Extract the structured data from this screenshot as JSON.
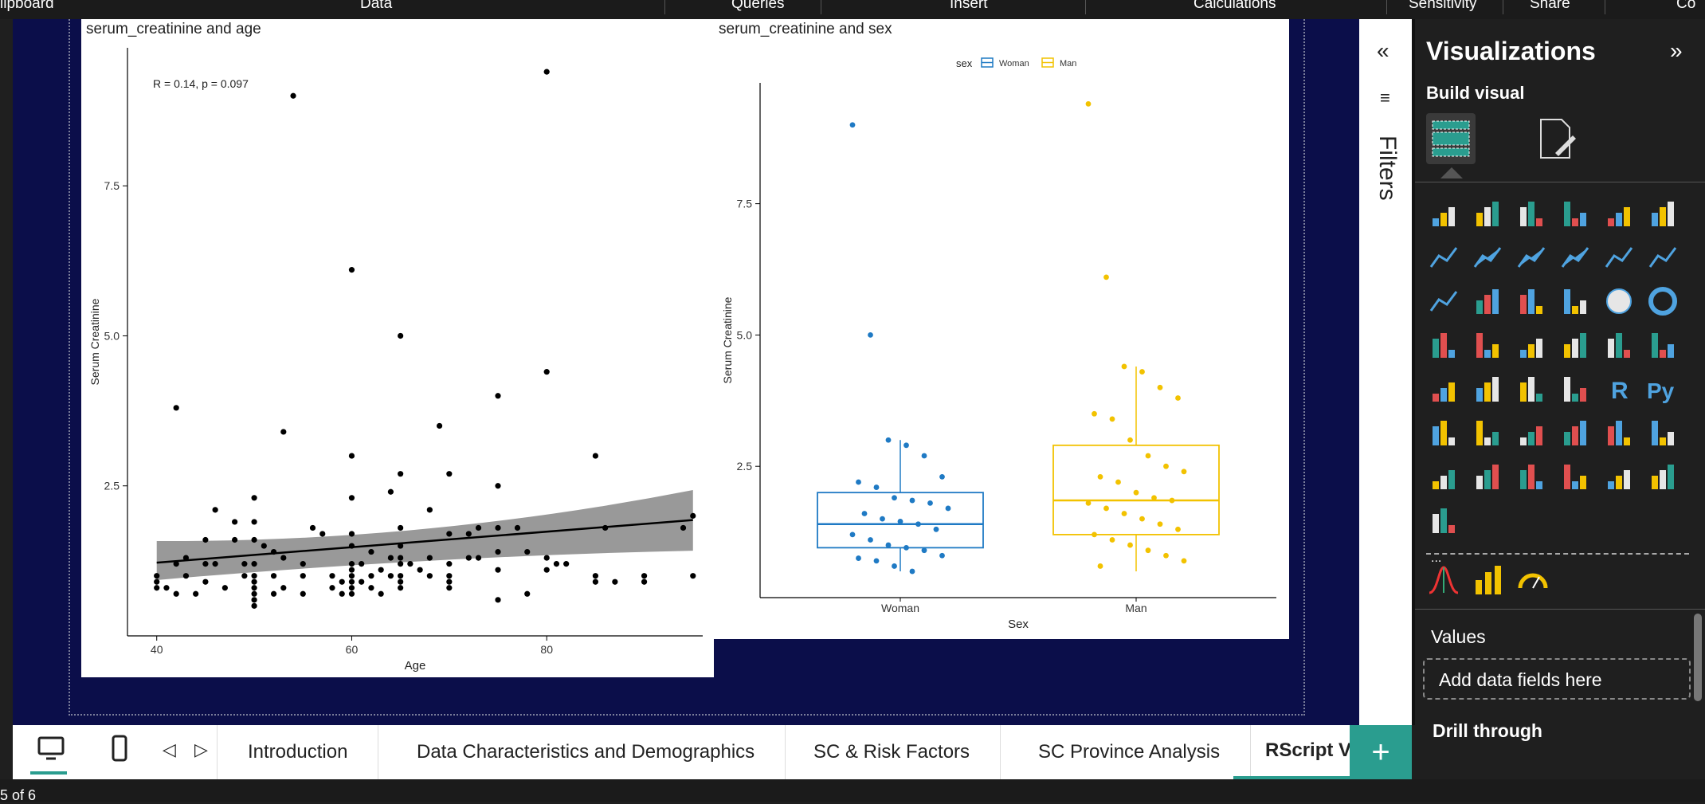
{
  "ribbon": {
    "items": [
      "lipboard",
      "Data",
      "Queries",
      "Insert",
      "Calculations",
      "Sensitivity",
      "Share",
      "Co"
    ]
  },
  "colors": {
    "woman": "#1f7ac4",
    "man": "#f2c200",
    "accent": "#2a9d8f",
    "canvas": "#0b0e4a"
  },
  "filters": {
    "title": "Filters",
    "collapse_icon": "double-chevron-left-icon"
  },
  "visualizations": {
    "title": "Visualizations",
    "build_visual": "Build visual",
    "values_label": "Values",
    "add_fields_placeholder": "Add data fields here",
    "drill_through": "Drill through",
    "more_label": "..."
  },
  "pages": {
    "tabs": [
      "Introduction",
      "Data Characteristics and Demographics",
      "SC & Risk Factors",
      "SC Province Analysis",
      "RScript Vi"
    ],
    "active_index": 4,
    "add_label": "+"
  },
  "status": {
    "page_indicator": "5 of 6"
  },
  "chart_data": [
    {
      "type": "scatter",
      "title": "serum_creatinine and age",
      "xlabel": "Age",
      "ylabel": "Serum Creatinine",
      "xlim": [
        37,
        96
      ],
      "ylim": [
        0,
        9.8
      ],
      "xticks": [
        "40",
        "60",
        "80"
      ],
      "yticks": [
        "2.5",
        "5.0",
        "7.5"
      ],
      "annotation": "R = 0.14, p = 0.097",
      "regression": {
        "x": [
          40,
          95
        ],
        "y": [
          1.22,
          1.93
        ],
        "ci_low_start": 0.93,
        "ci_high_start": 1.58,
        "ci_low_mid": 1.32,
        "ci_high_mid": 1.56,
        "ci_low_end": 1.42,
        "ci_high_end": 2.43
      },
      "points": [
        [
          40,
          0.9
        ],
        [
          40,
          1.0
        ],
        [
          40,
          0.8
        ],
        [
          41,
          0.8
        ],
        [
          42,
          3.8
        ],
        [
          42,
          1.2
        ],
        [
          42,
          0.7
        ],
        [
          43,
          1.3
        ],
        [
          43,
          1.0
        ],
        [
          44,
          0.7
        ],
        [
          45,
          1.6
        ],
        [
          45,
          1.2
        ],
        [
          45,
          0.9
        ],
        [
          46,
          2.1
        ],
        [
          46,
          1.2
        ],
        [
          47,
          0.8
        ],
        [
          48,
          1.6
        ],
        [
          48,
          1.9
        ],
        [
          49,
          1.0
        ],
        [
          49,
          1.2
        ],
        [
          50,
          2.3
        ],
        [
          50,
          1.9
        ],
        [
          50,
          1.6
        ],
        [
          50,
          1.2
        ],
        [
          50,
          1.0
        ],
        [
          50,
          0.9
        ],
        [
          50,
          0.8
        ],
        [
          50,
          0.7
        ],
        [
          50,
          0.6
        ],
        [
          50,
          0.5
        ],
        [
          51,
          1.5
        ],
        [
          52,
          1.4
        ],
        [
          52,
          1.0
        ],
        [
          52,
          0.7
        ],
        [
          53,
          3.4
        ],
        [
          53,
          1.3
        ],
        [
          53,
          0.8
        ],
        [
          54,
          9.0
        ],
        [
          55,
          1.2
        ],
        [
          55,
          1.0
        ],
        [
          55,
          0.7
        ],
        [
          56,
          1.8
        ],
        [
          57,
          1.7
        ],
        [
          58,
          1.0
        ],
        [
          58,
          0.8
        ],
        [
          59,
          0.9
        ],
        [
          59,
          0.7
        ],
        [
          60,
          6.1
        ],
        [
          60,
          3.0
        ],
        [
          60,
          2.3
        ],
        [
          60,
          1.7
        ],
        [
          60,
          1.5
        ],
        [
          60,
          1.2
        ],
        [
          60,
          1.1
        ],
        [
          60,
          1.0
        ],
        [
          60,
          0.9
        ],
        [
          60,
          0.8
        ],
        [
          60,
          0.7
        ],
        [
          61,
          1.2
        ],
        [
          61,
          0.9
        ],
        [
          62,
          1.4
        ],
        [
          62,
          1.0
        ],
        [
          62,
          0.8
        ],
        [
          63,
          1.1
        ],
        [
          63,
          0.7
        ],
        [
          64,
          2.4
        ],
        [
          64,
          1.3
        ],
        [
          64,
          1.0
        ],
        [
          65,
          5.0
        ],
        [
          65,
          2.7
        ],
        [
          65,
          1.8
        ],
        [
          65,
          1.5
        ],
        [
          65,
          1.3
        ],
        [
          65,
          1.2
        ],
        [
          65,
          1.0
        ],
        [
          65,
          0.9
        ],
        [
          65,
          0.8
        ],
        [
          66,
          1.2
        ],
        [
          67,
          1.1
        ],
        [
          68,
          2.1
        ],
        [
          68,
          1.3
        ],
        [
          68,
          1.0
        ],
        [
          69,
          3.5
        ],
        [
          70,
          2.7
        ],
        [
          70,
          1.7
        ],
        [
          70,
          1.2
        ],
        [
          70,
          1.0
        ],
        [
          70,
          0.9
        ],
        [
          70,
          0.8
        ],
        [
          72,
          1.7
        ],
        [
          72,
          1.3
        ],
        [
          73,
          1.8
        ],
        [
          73,
          1.3
        ],
        [
          75,
          4.0
        ],
        [
          75,
          2.5
        ],
        [
          75,
          1.8
        ],
        [
          75,
          1.4
        ],
        [
          75,
          1.1
        ],
        [
          75,
          0.6
        ],
        [
          77,
          1.8
        ],
        [
          78,
          1.4
        ],
        [
          78,
          0.7
        ],
        [
          80,
          9.4
        ],
        [
          80,
          4.4
        ],
        [
          80,
          1.3
        ],
        [
          80,
          1.1
        ],
        [
          81,
          1.2
        ],
        [
          82,
          1.2
        ],
        [
          85,
          3.0
        ],
        [
          85,
          1.0
        ],
        [
          85,
          0.9
        ],
        [
          86,
          1.8
        ],
        [
          87,
          0.9
        ],
        [
          90,
          1.0
        ],
        [
          90,
          0.9
        ],
        [
          94,
          1.8
        ],
        [
          95,
          2.0
        ],
        [
          95,
          1.0
        ]
      ]
    },
    {
      "type": "box",
      "title": "serum_creatinine and sex",
      "xlabel": "Sex",
      "ylabel": "Serum Creatinine",
      "ylim": [
        0,
        9.8
      ],
      "yticks": [
        "2.5",
        "5.0",
        "7.5"
      ],
      "legend_title": "sex",
      "categories": [
        "Woman",
        "Man"
      ],
      "series": [
        {
          "name": "Woman",
          "whisker_low": 0.5,
          "q1": 0.95,
          "median": 1.4,
          "q3": 2.0,
          "whisker_high": 3.0,
          "points": [
            9.0,
            5.0,
            3.0,
            2.9,
            2.7,
            2.3,
            2.2,
            2.1,
            1.9,
            1.85,
            1.8,
            1.7,
            1.6,
            1.5,
            1.45,
            1.4,
            1.3,
            1.2,
            1.1,
            1.0,
            0.95,
            0.9,
            0.8,
            0.75,
            0.7,
            0.6,
            0.5
          ]
        },
        {
          "name": "Man",
          "whisker_low": 0.5,
          "q1": 1.2,
          "median": 1.85,
          "q3": 2.9,
          "whisker_high": 4.4,
          "points": [
            9.4,
            6.1,
            4.4,
            4.3,
            4.0,
            3.8,
            3.5,
            3.4,
            3.0,
            2.7,
            2.5,
            2.4,
            2.3,
            2.2,
            2.0,
            1.9,
            1.85,
            1.8,
            1.7,
            1.6,
            1.5,
            1.4,
            1.3,
            1.2,
            1.1,
            1.0,
            0.9,
            0.8,
            0.7,
            0.6
          ]
        }
      ]
    }
  ]
}
